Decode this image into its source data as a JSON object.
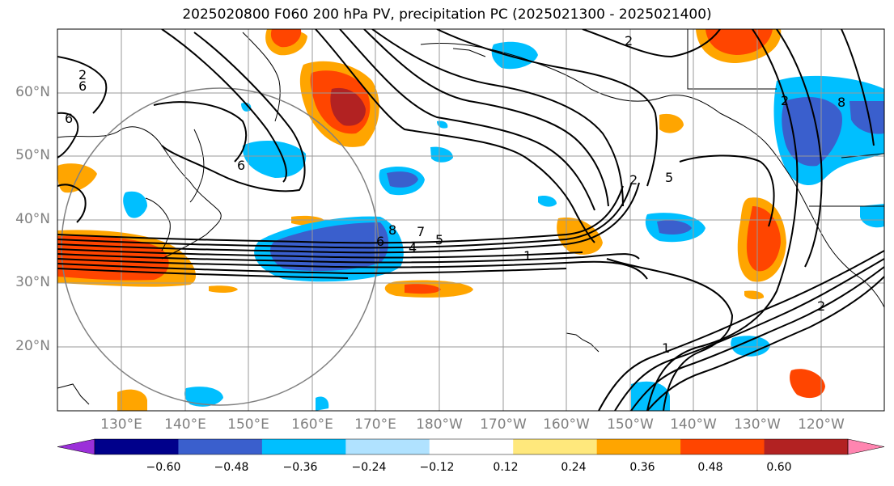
{
  "title": "2025020800 F060 200 hPa PV, precipitation PC (2025021300 - 2025021400)",
  "lat_labels": [
    "60°N",
    "50°N",
    "40°N",
    "30°N",
    "20°N"
  ],
  "lon_labels": [
    "130°E",
    "140°E",
    "150°E",
    "160°E",
    "170°E",
    "180°W",
    "170°W",
    "160°W",
    "150°W",
    "140°W",
    "130°W",
    "120°W"
  ],
  "pv_contour_labels": [
    "1",
    "2",
    "4",
    "5",
    "6",
    "7",
    "8",
    "6",
    "6",
    "6",
    "2",
    "2",
    "5",
    "2",
    "8",
    "2",
    "1"
  ],
  "colorbar": {
    "ticks": [
      "−0.60",
      "−0.48",
      "−0.36",
      "−0.24",
      "−0.12",
      "0.12",
      "0.24",
      "0.36",
      "0.48",
      "0.60"
    ],
    "colors": [
      "#9b30d9",
      "#00008b",
      "#3a5fcd",
      "#00bfff",
      "#b0e2ff",
      "#ffffff",
      "#ffe87c",
      "#ffa500",
      "#ff4500",
      "#b22222",
      "#ff85b0"
    ]
  }
}
